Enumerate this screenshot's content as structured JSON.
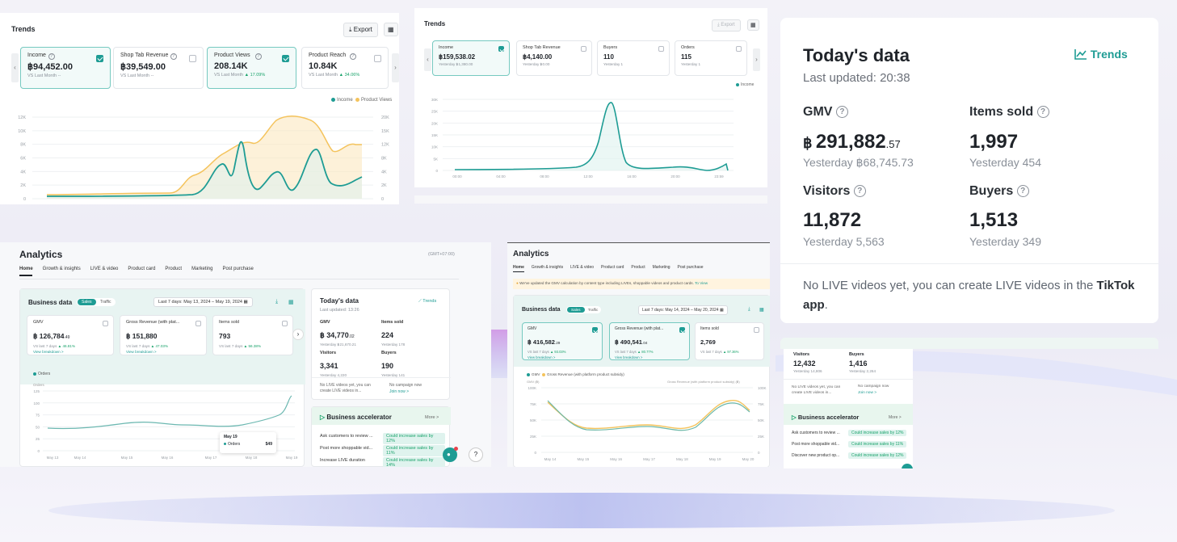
{
  "colors": {
    "teal": "#1e9c94",
    "orange": "#f4c35c",
    "green": "#1aa36b"
  },
  "p1": {
    "title": "Trends",
    "export_label": "Export",
    "cards": [
      {
        "label": "Income",
        "value": "฿94,452.00",
        "sub": "VS Last Month",
        "delta": "--",
        "checked": true
      },
      {
        "label": "Shop Tab Revenue",
        "value": "฿39,549.00",
        "sub": "VS Last Month",
        "delta": "--",
        "checked": false
      },
      {
        "label": "Product Views",
        "value": "208.14K",
        "sub": "VS Last Month",
        "delta": "▲ 17.09%",
        "checked": true
      },
      {
        "label": "Product Reach",
        "value": "10.84K",
        "sub": "VS Last Month",
        "delta": "▲ 34.06%",
        "checked": false
      }
    ],
    "legend": [
      "Income",
      "Product Views"
    ],
    "y_left": [
      "12K",
      "10K",
      "8K",
      "6K",
      "4K",
      "2K",
      "0"
    ],
    "y_right": [
      "20K",
      "15K",
      "12K",
      "8K",
      "4K",
      "2K",
      "0"
    ]
  },
  "p2": {
    "title": "Trends",
    "export_label": "Export",
    "cards": [
      {
        "label": "Income",
        "value": "฿159,538.02",
        "sub": "Yesterday ฿1,380.00",
        "checked": true
      },
      {
        "label": "Shop Tab Revenue",
        "value": "฿4,140.00",
        "sub": "Yesterday ฿0.00",
        "checked": false
      },
      {
        "label": "Buyers",
        "value": "110",
        "sub": "Yesterday 1",
        "checked": false
      },
      {
        "label": "Orders",
        "value": "115",
        "sub": "Yesterday 1",
        "checked": false
      }
    ],
    "legend": "Income",
    "y_ticks": [
      "30K",
      "25K",
      "20K",
      "15K",
      "10K",
      "5K",
      "0"
    ],
    "x_ticks": [
      "00:00",
      "04:00",
      "08:00",
      "12:00",
      "16:00",
      "20:00",
      "23:59"
    ]
  },
  "p3": {
    "title": "Today's data",
    "trends_label": "Trends",
    "updated": "Last updated: 20:38",
    "gmv_label": "GMV",
    "gmv_prefix": "฿",
    "gmv_int": "291,882",
    "gmv_dec": ".57",
    "gmv_yday": "Yesterday ฿68,745.73",
    "items_label": "Items sold",
    "items_value": "1,997",
    "items_yday": "Yesterday 454",
    "visitors_label": "Visitors",
    "visitors_value": "11,872",
    "visitors_yday": "Yesterday 5,563",
    "buyers_label": "Buyers",
    "buyers_value": "1,513",
    "buyers_yday": "Yesterday 349",
    "live_note_a": "No LIVE videos yet, you can create LIVE videos in the ",
    "live_note_b": "TikTok app",
    "live_note_c": "."
  },
  "p4": {
    "title": "Analytics",
    "tz": "(GMT+07:00)",
    "tabs": [
      "Home",
      "Growth & insights",
      "LIVE & video",
      "Product card",
      "Product",
      "Marketing",
      "Post purchase"
    ],
    "business_data": "Business data",
    "toggle_a": "Sales",
    "toggle_b": "Traffic",
    "date_label": "Last 7 days:",
    "date_from": "May 13, 2024",
    "date_to": "May 19, 2024",
    "cards": [
      {
        "label": "GMV",
        "value": "฿ 126,784",
        "dec": ".49",
        "sub": "VS last 7 days",
        "delta": "▲ 46.81%",
        "link": "View breakdown >"
      },
      {
        "label": "Gross Revenue (with plat...",
        "value": "฿ 151,880",
        "dec": "",
        "sub": "VS last 7 days",
        "delta": "▲ 47.03%",
        "link": "View breakdown >"
      },
      {
        "label": "Items sold",
        "value": "793",
        "dec": "",
        "sub": "VS last 7 days",
        "delta": "▲ 56.38%",
        "link": ""
      }
    ],
    "legend": "Orders",
    "y_title": "Orders",
    "y_ticks": [
      "125",
      "100",
      "75",
      "50",
      "25",
      "0"
    ],
    "x_ticks": [
      "May 13",
      "May 14",
      "May 15",
      "May 16",
      "May 17",
      "May 18",
      "May 19"
    ],
    "tooltip_date": "May 19",
    "tooltip_label": "Orders",
    "tooltip_value": "$49",
    "today_title": "Today's data",
    "today_trends": "Trends",
    "today_updated": "Last updated: 13:26",
    "today": [
      {
        "label": "GMV",
        "value": "฿ 34,770",
        "dec": ".02",
        "yday": "Yesterday ฿21,670.21"
      },
      {
        "label": "Items sold",
        "value": "224",
        "dec": "",
        "yday": "Yesterday 178"
      },
      {
        "label": "Visitors",
        "value": "3,341",
        "dec": "",
        "yday": "Yesterday 4,220"
      },
      {
        "label": "Buyers",
        "value": "190",
        "dec": "",
        "yday": "Yesterday 141"
      }
    ],
    "no_live": "No LIVE videos yet, you can create LIVE videos in...",
    "no_campaign": "No campaign now",
    "join_now": "Join now >",
    "accel_title": "Business accelerator",
    "more": "More >",
    "accel": [
      {
        "label": "Ask customers to review ...",
        "pill": "Could increase sales by 12%"
      },
      {
        "label": "Post more shoppable vid...",
        "pill": "Could increase sales by 11%"
      },
      {
        "label": "Increase LIVE duration",
        "pill": "Could increase sales by 14%"
      }
    ]
  },
  "p5": {
    "title": "Analytics",
    "tabs": [
      "Home",
      "Growth & insights",
      "LIVE & video",
      "Product card",
      "Product",
      "Marketing",
      "Post purchase"
    ],
    "banner": "We've updated the GMV calculation by content type including LIVEs, shoppable videos and product cards.",
    "banner_link": "To View",
    "business_data": "Business data",
    "toggle_a": "Sales",
    "toggle_b": "Traffic",
    "date_label": "Last 7 days:",
    "date_from": "May 14, 2024",
    "date_to": "May 20, 2024",
    "cards": [
      {
        "label": "GMV",
        "value": "฿ 416,582",
        "dec": ".29",
        "sub": "VS last 7 days",
        "delta": "▲ 93.03%",
        "link": "View breakdown >"
      },
      {
        "label": "Gross Revenue (with plat...",
        "value": "฿ 490,541",
        "dec": ".04",
        "sub": "VS last 7 days",
        "delta": "▲ 80.77%",
        "link": "View breakdown >"
      },
      {
        "label": "Items sold",
        "value": "2,769",
        "dec": "",
        "sub": "VS last 7 days",
        "delta": "▲ 97.36%",
        "link": ""
      }
    ],
    "legend_a": "GMV",
    "legend_b": "Gross Revenue (with platform product subsidy)",
    "axis_a": "GMV (฿)",
    "axis_b": "Gross Revenue (with platform product subsidy) (฿)",
    "y_left": [
      "100K",
      "75K",
      "50K",
      "25K",
      "0"
    ],
    "y_right": [
      "100K",
      "75K",
      "50K",
      "25K",
      "0"
    ],
    "x_ticks": [
      "May 14",
      "May 15",
      "May 16",
      "May 17",
      "May 18",
      "May 19",
      "May 20"
    ]
  },
  "p6": {
    "visitors_label": "Visitors",
    "visitors_value": "12,432",
    "visitors_yday": "Yesterday 14,806",
    "buyers_label": "Buyers",
    "buyers_value": "1,416",
    "buyers_yday": "Yesterday 2,264",
    "no_live": "No LIVE videos yet, you can create LIVE videos in...",
    "no_campaign": "No campaign now",
    "join_now": "Join now >",
    "accel_title": "Business accelerator",
    "more": "More >",
    "accel": [
      {
        "label": "Ask customers to review ...",
        "pill": "Could increase sales by 12%"
      },
      {
        "label": "Post more shoppable vid...",
        "pill": "Could increase sales by 11%"
      },
      {
        "label": "Discover new product op...",
        "pill": "Could increase sales by 12%"
      }
    ]
  }
}
